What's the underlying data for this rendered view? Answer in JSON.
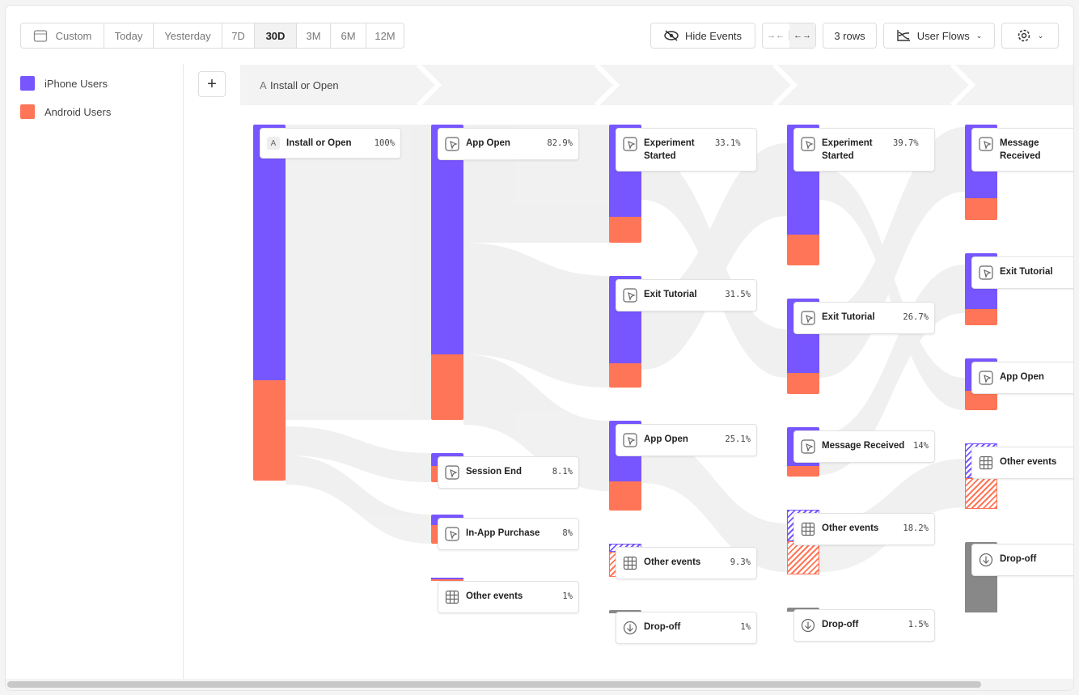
{
  "toolbar": {
    "date_ranges": [
      "Custom",
      "Today",
      "Yesterday",
      "7D",
      "30D",
      "3M",
      "6M",
      "12M"
    ],
    "hide_events": "Hide Events",
    "rows": "3 rows",
    "view": "User Flows"
  },
  "legend": [
    "iPhone Users",
    "Android Users"
  ],
  "step_header": {
    "badge": "A",
    "label": "Install or Open"
  },
  "columns": [
    [
      {
        "badge": "A",
        "label": "Install or Open",
        "share": "100%"
      }
    ],
    [
      {
        "label": "App Open",
        "share": "82.9%"
      },
      {
        "label": "Session End",
        "share": "8.1%"
      },
      {
        "label": "In-App Purchase",
        "share": "8%"
      },
      {
        "label": "Other events",
        "share": "1%"
      }
    ],
    [
      {
        "label": "Experiment Started",
        "share": "33.1%"
      },
      {
        "label": "Exit Tutorial",
        "share": "31.5%"
      },
      {
        "label": "App Open",
        "share": "25.1%"
      },
      {
        "label": "Other events",
        "share": "9.3%"
      },
      {
        "label": "Drop-off",
        "share": "1%"
      }
    ],
    [
      {
        "label": "Experiment Started",
        "share": "39.7%"
      },
      {
        "label": "Exit Tutorial",
        "share": "26.7%"
      },
      {
        "label": "Message Received",
        "share": "14%"
      },
      {
        "label": "Other events",
        "share": "18.2%"
      },
      {
        "label": "Drop-off",
        "share": "1.5%"
      }
    ],
    [
      {
        "label": "Message Received"
      },
      {
        "label": "Exit Tutorial"
      },
      {
        "label": "App Open"
      },
      {
        "label": "Other events"
      },
      {
        "label": "Drop-off"
      }
    ]
  ]
}
